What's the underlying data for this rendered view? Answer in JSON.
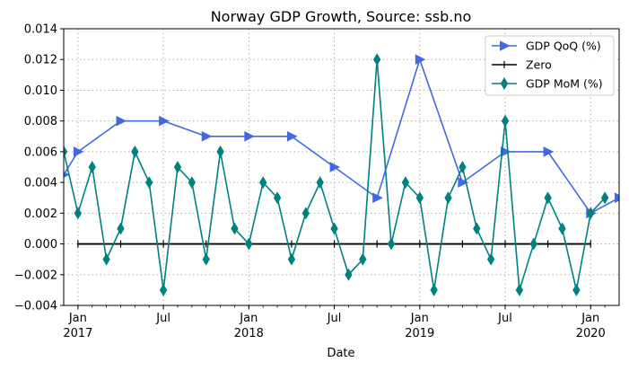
{
  "chart_data": {
    "type": "line",
    "title": "Norway GDP Growth, Source: ssb.no",
    "xlabel": "Date",
    "ylabel": "",
    "ylim": [
      -0.004,
      0.014
    ],
    "xlim": [
      "2016-12",
      "2020-03"
    ],
    "yticks": [
      "−0.004",
      "−0.002",
      "0.000",
      "0.002",
      "0.004",
      "0.006",
      "0.008",
      "0.010",
      "0.012",
      "0.014"
    ],
    "xticks_major": [
      {
        "date": "2017-01",
        "label": "Jan",
        "sublabel": "2017"
      },
      {
        "date": "2017-07",
        "label": "Jul",
        "sublabel": ""
      },
      {
        "date": "2018-01",
        "label": "Jan",
        "sublabel": "2018"
      },
      {
        "date": "2018-07",
        "label": "Jul",
        "sublabel": ""
      },
      {
        "date": "2019-01",
        "label": "Jan",
        "sublabel": "2019"
      },
      {
        "date": "2019-07",
        "label": "Jul",
        "sublabel": ""
      },
      {
        "date": "2020-01",
        "label": "Jan",
        "sublabel": "2020"
      }
    ],
    "grid": true,
    "legend_position": "top-right",
    "series": [
      {
        "name": "GDP QoQ (%)",
        "color": "#4169E1",
        "marker": "triangle-right",
        "x": [
          "2016-12",
          "2017-01",
          "2017-04",
          "2017-07",
          "2017-10",
          "2018-01",
          "2018-04",
          "2018-07",
          "2018-10",
          "2019-01",
          "2019-04",
          "2019-07",
          "2019-10",
          "2020-01",
          "2020-03"
        ],
        "y": [
          0.0045,
          0.006,
          0.008,
          0.008,
          0.007,
          0.007,
          0.007,
          0.005,
          0.003,
          0.012,
          0.004,
          0.006,
          0.006,
          0.002,
          0.003
        ]
      },
      {
        "name": "Zero",
        "color": "#000000",
        "marker": "vline",
        "x": [
          "2017-01",
          "2017-04",
          "2017-07",
          "2017-10",
          "2018-01",
          "2018-04",
          "2018-07",
          "2018-10",
          "2019-01",
          "2019-04",
          "2019-07",
          "2019-10",
          "2020-01"
        ],
        "y": [
          0,
          0,
          0,
          0,
          0,
          0,
          0,
          0,
          0,
          0,
          0,
          0,
          0
        ]
      },
      {
        "name": "GDP MoM (%)",
        "color": "#008080",
        "marker": "thin-diamond",
        "x": [
          "2016-12",
          "2017-01",
          "2017-02",
          "2017-03",
          "2017-04",
          "2017-05",
          "2017-06",
          "2017-07",
          "2017-08",
          "2017-09",
          "2017-10",
          "2017-11",
          "2017-12",
          "2018-01",
          "2018-02",
          "2018-03",
          "2018-04",
          "2018-05",
          "2018-06",
          "2018-07",
          "2018-08",
          "2018-09",
          "2018-10",
          "2018-11",
          "2018-12",
          "2019-01",
          "2019-02",
          "2019-03",
          "2019-04",
          "2019-05",
          "2019-06",
          "2019-07",
          "2019-08",
          "2019-09",
          "2019-10",
          "2019-11",
          "2019-12",
          "2020-01",
          "2020-02"
        ],
        "y": [
          0.006,
          0.002,
          0.005,
          -0.001,
          0.001,
          0.006,
          0.004,
          -0.003,
          0.005,
          0.004,
          -0.001,
          0.006,
          0.001,
          0.0,
          0.004,
          0.003,
          -0.001,
          0.002,
          0.004,
          0.001,
          -0.002,
          -0.001,
          0.012,
          0.0,
          0.004,
          0.003,
          -0.003,
          0.003,
          0.005,
          0.001,
          -0.001,
          0.008,
          -0.003,
          0.0,
          0.003,
          0.001,
          -0.003,
          0.002,
          0.003
        ]
      }
    ]
  }
}
